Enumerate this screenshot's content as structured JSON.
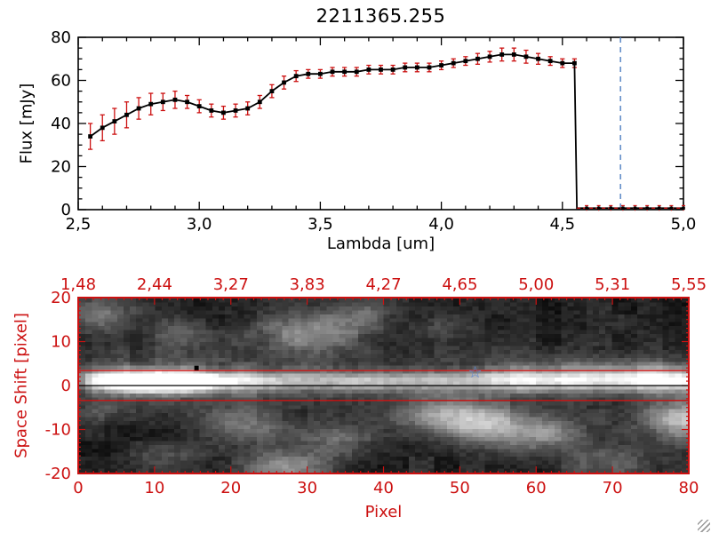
{
  "window": {
    "title": "2211365.255"
  },
  "chart_data": [
    {
      "type": "line",
      "title": "2211365.255",
      "xlabel": "Lambda [um]",
      "ylabel": "Flux [mJy]",
      "xlim": [
        2.5,
        5.0
      ],
      "ylim": [
        0,
        80
      ],
      "xtick_values": [
        2.5,
        3.0,
        3.5,
        4.0,
        4.5,
        5.0
      ],
      "xtick_labels": [
        "2,5",
        "3,0",
        "3,5",
        "4,0",
        "4,5",
        "5,0"
      ],
      "ytick_values": [
        0,
        20,
        40,
        60,
        80
      ],
      "ytick_labels": [
        "0",
        "20",
        "40",
        "60",
        "80"
      ],
      "grid": false,
      "line_color": "#000000",
      "marker": "square",
      "error_color": "#cc1111",
      "vline": {
        "x": 4.74,
        "color": "#5b87c5",
        "style": "dashed"
      },
      "points": [
        [
          2.55,
          34,
          6
        ],
        [
          2.6,
          38,
          6
        ],
        [
          2.65,
          41,
          6
        ],
        [
          2.7,
          44,
          6
        ],
        [
          2.75,
          47,
          5
        ],
        [
          2.8,
          49,
          5
        ],
        [
          2.85,
          50,
          4
        ],
        [
          2.9,
          51,
          4
        ],
        [
          2.95,
          50,
          3
        ],
        [
          3.0,
          48,
          3
        ],
        [
          3.05,
          46,
          3
        ],
        [
          3.1,
          45,
          3
        ],
        [
          3.15,
          46,
          3
        ],
        [
          3.2,
          47,
          3
        ],
        [
          3.25,
          50,
          3
        ],
        [
          3.3,
          55,
          3
        ],
        [
          3.35,
          59,
          3
        ],
        [
          3.4,
          62,
          2.5
        ],
        [
          3.45,
          63,
          2
        ],
        [
          3.5,
          63,
          2
        ],
        [
          3.55,
          64,
          2
        ],
        [
          3.6,
          64,
          2
        ],
        [
          3.65,
          64,
          2
        ],
        [
          3.7,
          65,
          2
        ],
        [
          3.75,
          65,
          2
        ],
        [
          3.8,
          65,
          2
        ],
        [
          3.85,
          66,
          2
        ],
        [
          3.9,
          66,
          2
        ],
        [
          3.95,
          66,
          2
        ],
        [
          4.0,
          67,
          2
        ],
        [
          4.05,
          68,
          2
        ],
        [
          4.1,
          69,
          2
        ],
        [
          4.15,
          70,
          2.5
        ],
        [
          4.2,
          71,
          2.5
        ],
        [
          4.25,
          72,
          3
        ],
        [
          4.3,
          72,
          3
        ],
        [
          4.35,
          71,
          3
        ],
        [
          4.4,
          70,
          2.5
        ],
        [
          4.45,
          69,
          2
        ],
        [
          4.5,
          68,
          2
        ],
        [
          4.55,
          68,
          2
        ]
      ],
      "cutoff": {
        "x": 4.56,
        "tail_end": 5.0,
        "tail_y": 0.7,
        "tail_err": 1.2,
        "tail_marker_step": 0.05,
        "tail_line_color": "#cc1111"
      }
    },
    {
      "type": "heatmap",
      "xlabel": "Pixel",
      "ylabel": "Space Shift [pixel]",
      "xlim": [
        0,
        80
      ],
      "ylim": [
        -20,
        20
      ],
      "xtick_values": [
        0,
        10,
        20,
        30,
        40,
        50,
        60,
        70,
        80
      ],
      "xtick_labels": [
        "0",
        "10",
        "20",
        "30",
        "40",
        "50",
        "60",
        "70",
        "80"
      ],
      "ytick_values": [
        20,
        10,
        0,
        -10,
        -20
      ],
      "ytick_labels": [
        "20",
        "10",
        "0",
        "-10",
        "-20"
      ],
      "top_axis_labels": [
        "1,48",
        "2,44",
        "3,27",
        "3,83",
        "4,27",
        "4,65",
        "5,00",
        "5,31",
        "5,55"
      ],
      "axis_color": "#cc1111",
      "aperture_lines": {
        "y_upper": 3.4,
        "y_lower": -3.4,
        "color": "#cc1111"
      },
      "trace_line": {
        "y": 0,
        "color": "#000000"
      },
      "star_marker": {
        "x": 52,
        "y": 3,
        "color": "#5b87d5"
      },
      "square_marker": {
        "x": 15.5,
        "y": 4,
        "color": "#000000"
      },
      "band": {
        "y_center": 1,
        "sigma": 1.6,
        "glow_sigma": 4.5,
        "base_amp": 0.5,
        "peak_amp": 0.48,
        "peak_x": 11,
        "peak_sigma": 7
      },
      "noise_seed": 42,
      "blobs": [
        {
          "x": 3,
          "y": 16,
          "sx": 3,
          "sy": 3,
          "i": 0.33
        },
        {
          "x": 13,
          "y": 12,
          "sx": 3,
          "sy": 2.5,
          "i": 0.2
        },
        {
          "x": 30,
          "y": 12,
          "sx": 5,
          "sy": 3.5,
          "i": 0.38
        },
        {
          "x": 37,
          "y": 16,
          "sx": 3,
          "sy": 2.5,
          "i": 0.24
        },
        {
          "x": 47,
          "y": 13,
          "sx": 3,
          "sy": 2.5,
          "i": 0.16
        },
        {
          "x": 22,
          "y": -9,
          "sx": 4,
          "sy": 3,
          "i": 0.28
        },
        {
          "x": 27,
          "y": -19,
          "sx": 4,
          "sy": 3,
          "i": 0.42
        },
        {
          "x": 34,
          "y": -13,
          "sx": 3.5,
          "sy": 3,
          "i": 0.26
        },
        {
          "x": 11,
          "y": -17,
          "sx": 3,
          "sy": 2.5,
          "i": 0.18
        },
        {
          "x": 48,
          "y": -7,
          "sx": 4,
          "sy": 3,
          "i": 0.5
        },
        {
          "x": 54,
          "y": -9,
          "sx": 3.5,
          "sy": 3,
          "i": 0.42
        },
        {
          "x": 61,
          "y": -11,
          "sx": 4,
          "sy": 3,
          "i": 0.38
        },
        {
          "x": 70,
          "y": -18,
          "sx": 4,
          "sy": 3,
          "i": 0.26
        },
        {
          "x": 80,
          "y": -8,
          "sx": 4,
          "sy": 3.5,
          "i": 0.6
        },
        {
          "x": 68,
          "y": 3,
          "sx": 6,
          "sy": 2.5,
          "i": 0.26
        },
        {
          "x": 77,
          "y": 2,
          "sx": 4,
          "sy": 2.2,
          "i": 0.28
        },
        {
          "x": 57,
          "y": 2,
          "sx": 4,
          "sy": 2,
          "i": 0.18
        },
        {
          "x": 3,
          "y": -6,
          "sx": 2.5,
          "sy": 2,
          "i": 0.14
        },
        {
          "x": 10,
          "y": 1,
          "sx": 4,
          "sy": 1.6,
          "i": 0.5
        }
      ]
    }
  ]
}
